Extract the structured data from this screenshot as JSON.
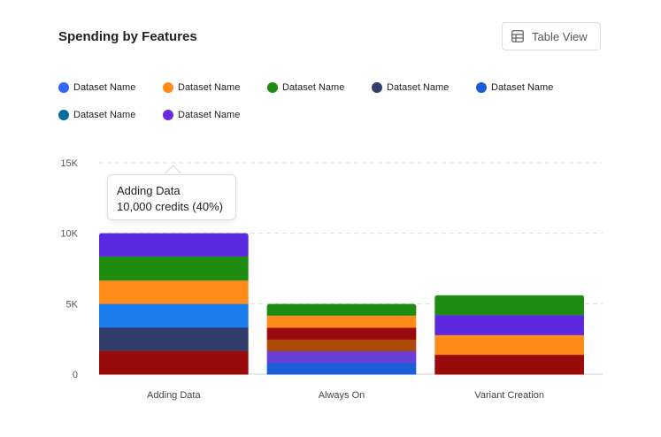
{
  "header": {
    "title": "Spending by Features",
    "table_view_label": "Table View",
    "table_view_icon": "table-icon"
  },
  "legend": [
    {
      "label": "Dataset Name",
      "color": "#3366ff"
    },
    {
      "label": "Dataset Name",
      "color": "#ff8c1a"
    },
    {
      "label": "Dataset Name",
      "color": "#1e8c10"
    },
    {
      "label": "Dataset Name",
      "color": "#333d6b"
    },
    {
      "label": "Dataset Name",
      "color": "#1a5fd6"
    },
    {
      "label": "Dataset Name",
      "color": "#0b6b9a"
    },
    {
      "label": "Dataset Name",
      "color": "#6a2be0"
    }
  ],
  "tooltip": {
    "title": "Adding Data",
    "value": "10,000 credits (40%)"
  },
  "chart_data": {
    "type": "bar",
    "stacked": true,
    "categories": [
      "Adding Data",
      "Always On",
      "Variant Creation"
    ],
    "ylim": [
      0,
      15000
    ],
    "yticks": [
      0,
      5000,
      10000,
      15000
    ],
    "ytick_labels": [
      "0",
      "5K",
      "10K",
      "15K"
    ],
    "grid": true,
    "stacks": [
      {
        "category": "Adding Data",
        "segments": [
          {
            "value": 1670,
            "color": "#9b0a0a"
          },
          {
            "value": 1670,
            "color": "#333d6b"
          },
          {
            "value": 1670,
            "color": "#1a7ef0"
          },
          {
            "value": 1670,
            "color": "#ff8c1a"
          },
          {
            "value": 1670,
            "color": "#1e8c10"
          },
          {
            "value": 1650,
            "color": "#5b2adf"
          }
        ]
      },
      {
        "category": "Always On",
        "segments": [
          {
            "value": 830,
            "color": "#1a5fd6"
          },
          {
            "value": 830,
            "color": "#6a3fd6"
          },
          {
            "value": 830,
            "color": "#b04a0a"
          },
          {
            "value": 830,
            "color": "#9b0a0a"
          },
          {
            "value": 830,
            "color": "#ff8c1a"
          },
          {
            "value": 830,
            "color": "#1e8c10"
          }
        ]
      },
      {
        "category": "Variant Creation",
        "segments": [
          {
            "value": 1400,
            "color": "#9b0a0a"
          },
          {
            "value": 1400,
            "color": "#ff8c1a"
          },
          {
            "value": 1400,
            "color": "#5b2adf"
          },
          {
            "value": 1400,
            "color": "#1e8c10"
          }
        ]
      }
    ]
  }
}
